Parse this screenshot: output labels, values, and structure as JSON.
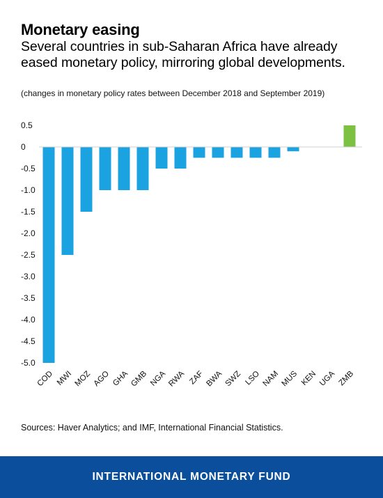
{
  "header": {
    "title": "Monetary easing",
    "subtitle": "Several countries in sub-Saharan Africa have already eased monetary policy, mirroring global developments.",
    "note": "(changes in monetary policy rates between December 2018 and September 2019)"
  },
  "source": "Sources: Haver Analytics; and IMF, International Financial Statistics.",
  "footer": {
    "label": "INTERNATIONAL MONETARY FUND"
  },
  "colors": {
    "negative": "#1ba2e0",
    "positive": "#7dc142",
    "footer_bg": "#0b4f9c"
  },
  "chart_data": {
    "type": "bar",
    "categories": [
      "COD",
      "MWI",
      "MOZ",
      "AGO",
      "GHA",
      "GMB",
      "NGA",
      "RWA",
      "ZAF",
      "BWA",
      "SWZ",
      "LSO",
      "NAM",
      "MUS",
      "KEN",
      "UGA",
      "ZMB"
    ],
    "values": [
      -5.0,
      -2.5,
      -1.5,
      -1.0,
      -1.0,
      -1.0,
      -0.5,
      -0.5,
      -0.25,
      -0.25,
      -0.25,
      -0.25,
      -0.25,
      -0.1,
      0,
      0,
      0.5
    ],
    "ylim": [
      -5.0,
      0.5
    ],
    "yticks": [
      0.5,
      0,
      -0.5,
      -1.0,
      -1.5,
      -2.0,
      -2.5,
      -3.0,
      -3.5,
      -4.0,
      -4.5,
      -5.0
    ],
    "ytick_labels": [
      "0.5",
      "0",
      "-0.5",
      "-1.0",
      "-1.5",
      "-2.0",
      "-2.5",
      "-3.0",
      "-3.5",
      "-4.0",
      "-4.5",
      "-5.0"
    ],
    "grid": false,
    "legend": "none"
  }
}
